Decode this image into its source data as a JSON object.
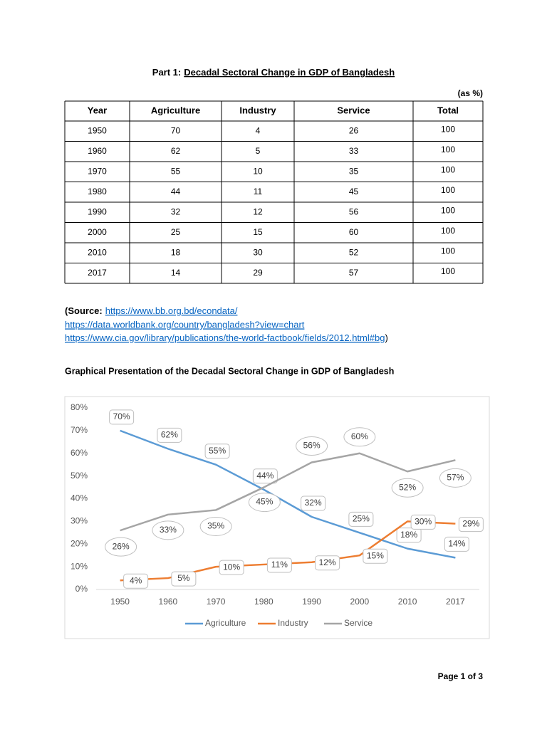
{
  "title_prefix": "Part 1:",
  "title": "Decadal Sectoral Change in GDP of Bangladesh",
  "unit_note": "(as %)",
  "table": {
    "header": [
      "Year",
      "Agriculture",
      "Industry",
      "Service",
      "Total"
    ],
    "rows": [
      [
        1950,
        70,
        4,
        26,
        100
      ],
      [
        1960,
        62,
        5,
        33,
        100
      ],
      [
        1970,
        55,
        10,
        35,
        100
      ],
      [
        1980,
        44,
        11,
        45,
        100
      ],
      [
        1990,
        32,
        12,
        56,
        100
      ],
      [
        2000,
        25,
        15,
        60,
        100
      ],
      [
        2010,
        18,
        30,
        52,
        100
      ],
      [
        2017,
        14,
        29,
        57,
        100
      ]
    ]
  },
  "source": {
    "label": "(Source:",
    "links": [
      "https://www.bb.org.bd/econdata/",
      "https://data.worldbank.org/country/bangladesh?view=chart",
      "https://www.cia.gov/library/publications/the-world-factbook/fields/2012.html#bg"
    ],
    "close": ")"
  },
  "chart_heading": "Graphical Presentation of the Decadal Sectoral Change in GDP of Bangladesh",
  "chart_data": {
    "type": "line",
    "categories": [
      "1950",
      "1960",
      "1970",
      "1980",
      "1990",
      "2000",
      "2010",
      "2017"
    ],
    "series": [
      {
        "name": "Agriculture",
        "color": "#5b9bd5",
        "values": [
          70,
          62,
          55,
          44,
          32,
          25,
          18,
          14
        ],
        "value_labels": [
          "70%",
          "62%",
          "55%",
          "44%",
          "32%",
          "25%",
          "18%",
          "14%"
        ]
      },
      {
        "name": "Industry",
        "color": "#ed7d31",
        "values": [
          4,
          5,
          10,
          11,
          12,
          15,
          30,
          29
        ],
        "value_labels": [
          "4%",
          "5%",
          "10%",
          "11%",
          "12%",
          "15%",
          "30%",
          "29%"
        ]
      },
      {
        "name": "Service",
        "color": "#a5a5a5",
        "values": [
          26,
          33,
          35,
          45,
          56,
          60,
          52,
          57
        ],
        "value_labels": [
          "26%",
          "33%",
          "35%",
          "45%",
          "56%",
          "60%",
          "52%",
          "57%"
        ]
      }
    ],
    "ylim": [
      0,
      80
    ],
    "yticks": [
      {
        "value": 0,
        "label": "0%"
      },
      {
        "value": 10,
        "label": "10%"
      },
      {
        "value": 20,
        "label": "20%"
      },
      {
        "value": 30,
        "label": "30%"
      },
      {
        "value": 40,
        "label": "40%"
      },
      {
        "value": 50,
        "label": "50%"
      },
      {
        "value": 60,
        "label": "60%"
      },
      {
        "value": 70,
        "label": "70%"
      },
      {
        "value": 80,
        "label": "80%"
      }
    ],
    "grid": false,
    "legend": "bottom"
  },
  "footer": "Page 1 of 3"
}
